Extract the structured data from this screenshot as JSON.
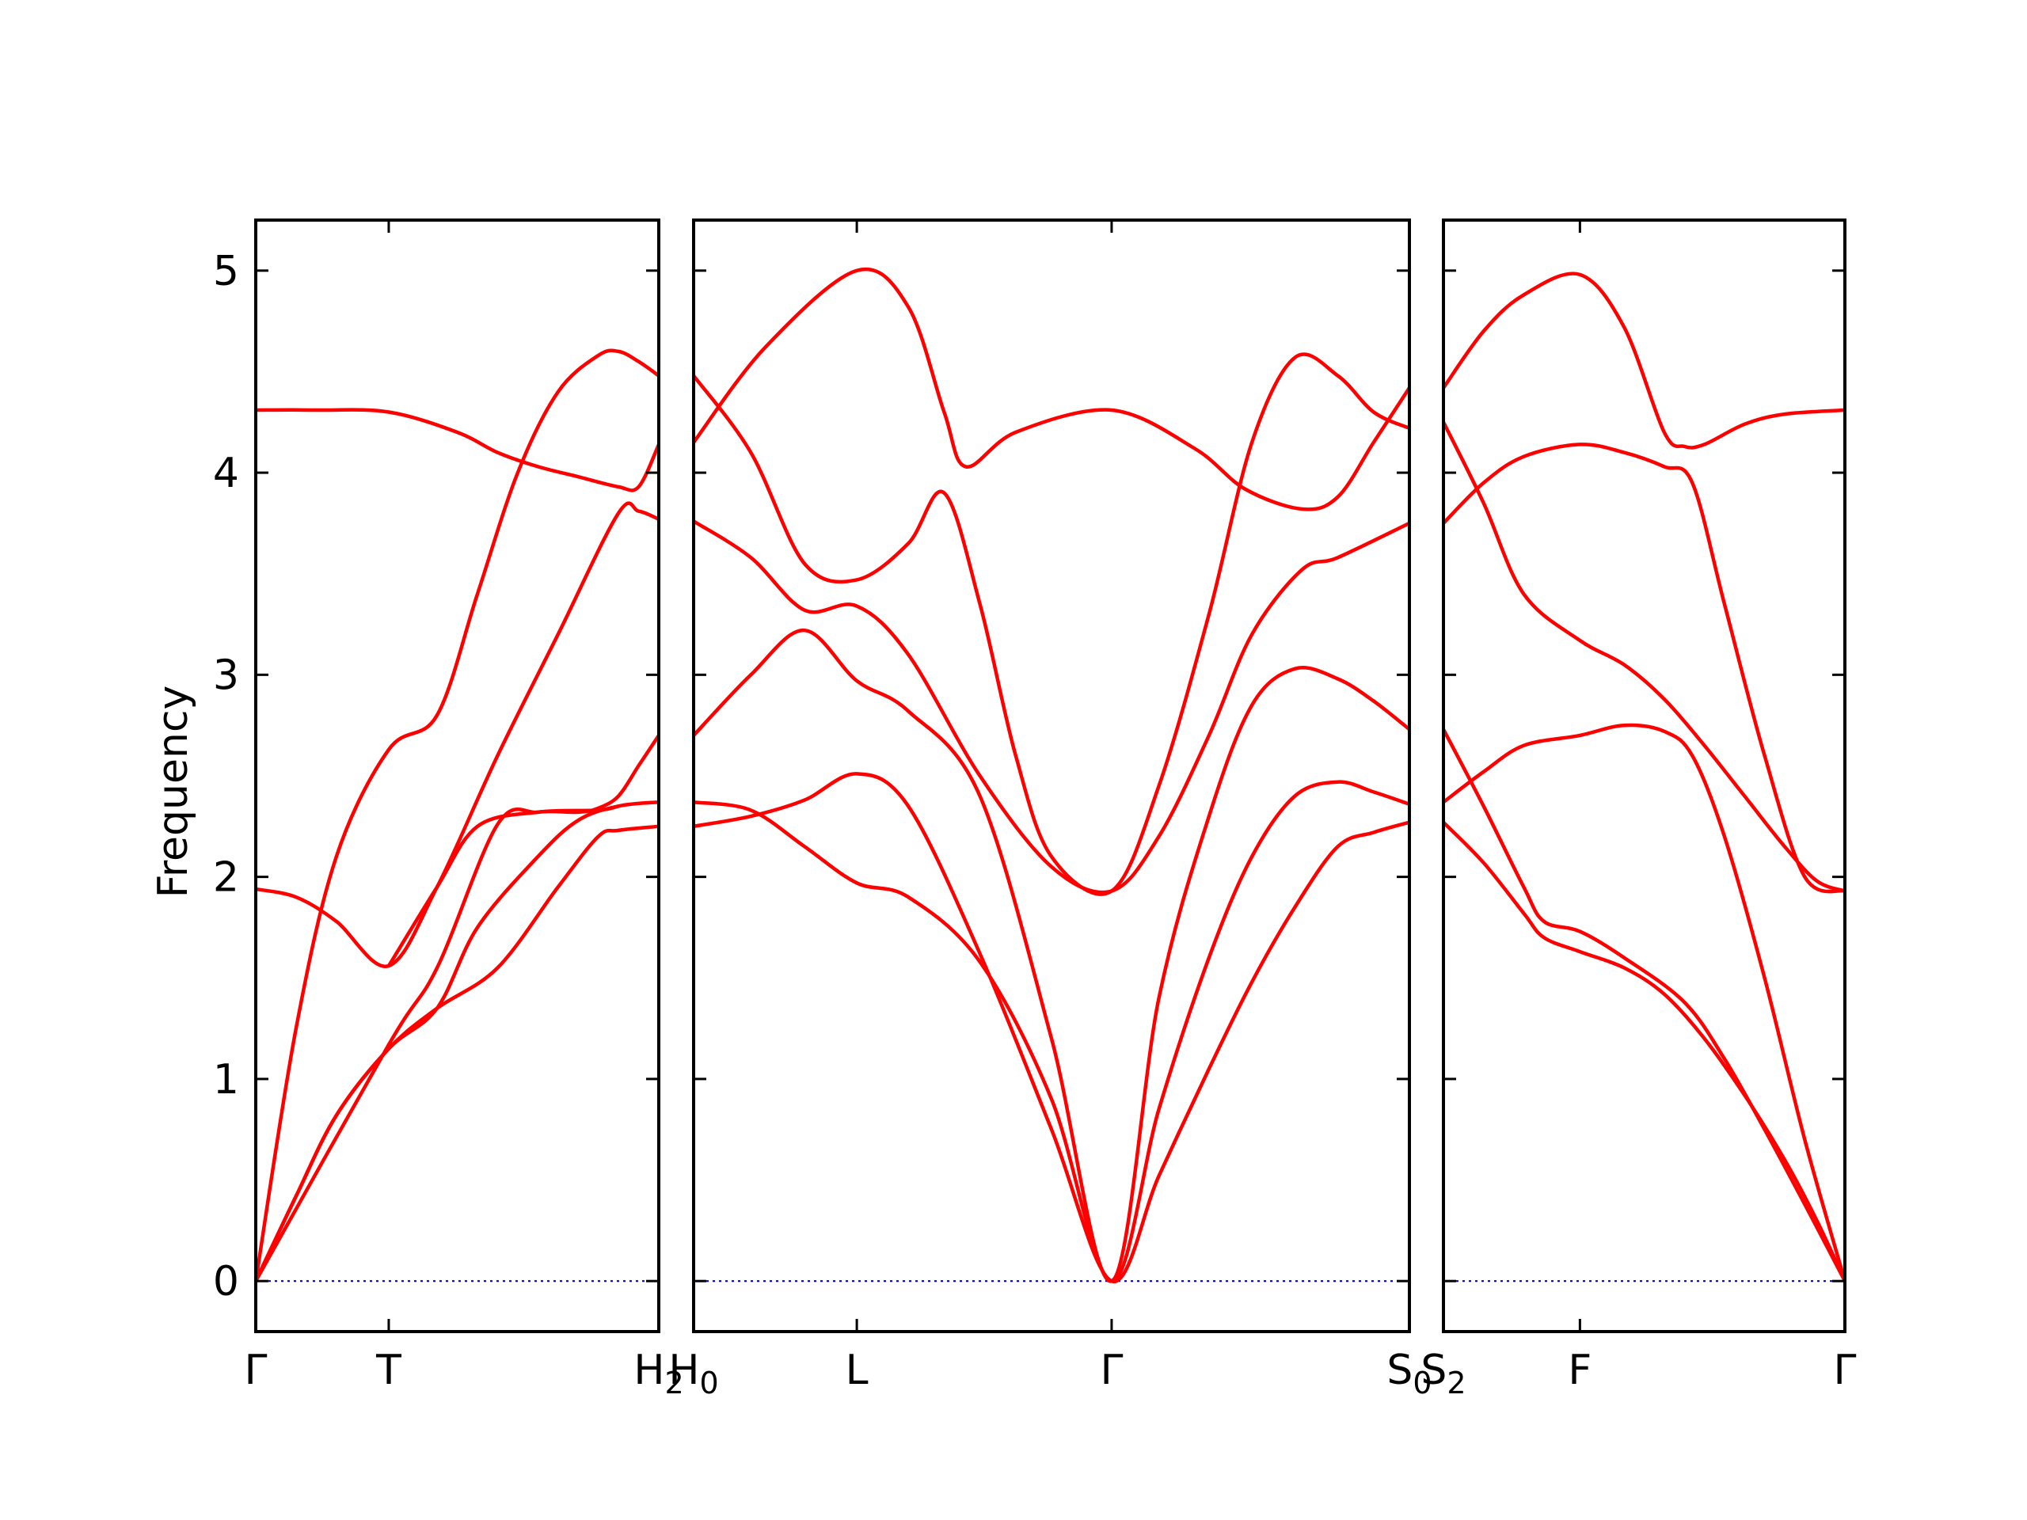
{
  "chart_data": {
    "type": "line",
    "ylabel": "Frequency",
    "ylim": [
      -0.25,
      5.25
    ],
    "yticks": [
      "0",
      "1",
      "2",
      "3",
      "4",
      "5"
    ],
    "grid": false,
    "band_color": "#ff0000",
    "zero_line_color": "#0000cc",
    "panels": [
      {
        "id": "panel-gamma-t-h2",
        "xticks": [
          {
            "label": "Γ",
            "pos": 0
          },
          {
            "label": "T",
            "pos": 0.33
          },
          {
            "label": "H",
            "sub": "2",
            "pos": 1
          }
        ],
        "series": [
          {
            "x": [
              0,
              0.15,
              0.33,
              0.5,
              0.6,
              0.7,
              0.8,
              0.9,
              0.95,
              1
            ],
            "y": [
              4.31,
              4.31,
              4.3,
              4.2,
              4.1,
              4.03,
              3.98,
              3.93,
              3.93,
              4.14
            ]
          },
          {
            "x": [
              0,
              0.1,
              0.2,
              0.33,
              0.45,
              0.55,
              0.65,
              0.75,
              0.85,
              0.9,
              0.95,
              1
            ],
            "y": [
              0,
              1.25,
              2.1,
              2.63,
              2.8,
              3.4,
              4.0,
              4.4,
              4.58,
              4.6,
              4.55,
              4.48
            ]
          },
          {
            "x": [
              0,
              0.1,
              0.2,
              0.33,
              0.45,
              0.6,
              0.75,
              0.9,
              0.95,
              1
            ],
            "y": [
              1.94,
              1.9,
              1.78,
              1.56,
              1.95,
              2.6,
              3.2,
              3.8,
              3.81,
              3.77
            ]
          },
          {
            "x": [
              0,
              0.1,
              0.2,
              0.33,
              0.45,
              0.55,
              0.7,
              0.8,
              0.9,
              1
            ],
            "y": [
              0,
              0.42,
              0.82,
              1.15,
              1.35,
              1.75,
              2.1,
              2.28,
              2.35,
              2.37
            ]
          },
          {
            "x": [
              0,
              0.33,
              0.45,
              0.6,
              0.7,
              0.8,
              0.85,
              0.9,
              0.95,
              1
            ],
            "y": [
              0,
              1.17,
              1.55,
              2.26,
              2.32,
              2.32,
              2.34,
              2.4,
              2.55,
              2.7
            ]
          },
          {
            "x": [
              0,
              0.1,
              0.2,
              0.33,
              0.45,
              0.6,
              0.75,
              0.85,
              0.9,
              1
            ],
            "y": [
              0,
              0.42,
              0.82,
              1.15,
              1.35,
              1.55,
              1.95,
              2.2,
              2.23,
              2.25
            ]
          },
          {
            "x": [
              0.33,
              0.45,
              0.55,
              0.7,
              0.85,
              0.9
            ],
            "y": [
              1.56,
              1.95,
              2.25,
              2.32,
              2.33,
              2.35
            ]
          }
        ]
      },
      {
        "id": "panel-h0-l-gamma-s0",
        "xticks": [
          {
            "label": "H",
            "sub": "0",
            "pos": 0
          },
          {
            "label": "L",
            "pos": 0.228
          },
          {
            "label": "Γ",
            "pos": 0.584
          },
          {
            "label": "S",
            "sub": "0",
            "pos": 1
          }
        ],
        "series": [
          {
            "x": [
              0,
              0.1,
              0.228,
              0.3,
              0.35,
              0.38,
              0.45,
              0.584,
              0.7,
              0.77,
              0.85,
              0.9,
              0.95,
              1
            ],
            "y": [
              4.15,
              4.62,
              5.0,
              4.82,
              4.3,
              4.03,
              4.2,
              4.31,
              4.12,
              3.92,
              3.82,
              3.88,
              4.15,
              4.42
            ]
          },
          {
            "x": [
              0,
              0.08,
              0.155,
              0.228,
              0.3,
              0.35,
              0.4,
              0.45,
              0.5,
              0.584,
              0.65,
              0.72,
              0.78,
              0.84,
              0.9,
              0.95,
              1
            ],
            "y": [
              4.48,
              4.1,
              3.55,
              3.47,
              3.65,
              3.9,
              3.35,
              2.6,
              2.1,
              1.93,
              2.45,
              3.3,
              4.15,
              4.57,
              4.48,
              4.3,
              4.22
            ]
          },
          {
            "x": [
              0,
              0.08,
              0.155,
              0.228,
              0.3,
              0.4,
              0.5,
              0.584,
              0.65,
              0.72,
              0.78,
              0.85,
              0.9,
              1
            ],
            "y": [
              3.76,
              3.58,
              3.32,
              3.34,
              3.1,
              2.5,
              2.05,
              1.93,
              2.2,
              2.7,
              3.2,
              3.52,
              3.58,
              3.75
            ]
          },
          {
            "x": [
              0,
              0.08,
              0.155,
              0.228,
              0.3,
              0.4,
              0.5,
              0.584,
              0.65,
              0.72,
              0.78,
              0.84,
              0.9,
              0.95,
              1
            ],
            "y": [
              2.7,
              3.0,
              3.22,
              2.97,
              2.82,
              2.4,
              1.2,
              0,
              1.4,
              2.3,
              2.85,
              3.03,
              2.98,
              2.87,
              2.73
            ]
          },
          {
            "x": [
              0,
              0.08,
              0.155,
              0.228,
              0.3,
              0.4,
              0.5,
              0.584,
              0.65,
              0.72,
              0.78,
              0.84,
              0.9,
              0.95,
              1
            ],
            "y": [
              2.37,
              2.33,
              2.15,
              1.97,
              1.9,
              1.58,
              0.9,
              0,
              0.85,
              1.6,
              2.1,
              2.4,
              2.47,
              2.42,
              2.36
            ]
          },
          {
            "x": [
              0,
              0.08,
              0.155,
              0.228,
              0.3,
              0.4,
              0.5,
              0.584,
              0.65,
              0.72,
              0.78,
              0.84,
              0.9,
              0.95,
              1
            ],
            "y": [
              2.25,
              2.3,
              2.38,
              2.51,
              2.35,
              1.62,
              0.75,
              0,
              0.52,
              1.05,
              1.48,
              1.85,
              2.15,
              2.22,
              2.27
            ]
          }
        ]
      },
      {
        "id": "panel-s2-f-gamma",
        "xticks": [
          {
            "label": "S",
            "sub": "2",
            "pos": 0
          },
          {
            "label": "F",
            "pos": 0.34
          },
          {
            "label": "Γ",
            "pos": 1
          }
        ],
        "series": [
          {
            "x": [
              0,
              0.1,
              0.2,
              0.34,
              0.45,
              0.55,
              0.6,
              0.65,
              0.75,
              0.85,
              1
            ],
            "y": [
              4.42,
              4.7,
              4.88,
              4.98,
              4.72,
              4.2,
              4.13,
              4.14,
              4.24,
              4.29,
              4.31
            ]
          },
          {
            "x": [
              0,
              0.1,
              0.2,
              0.34,
              0.45,
              0.55,
              0.62,
              0.7,
              0.8,
              0.9,
              1
            ],
            "y": [
              3.75,
              3.95,
              4.08,
              4.14,
              4.1,
              4.03,
              3.95,
              3.35,
              2.6,
              2.0,
              1.93
            ]
          },
          {
            "x": [
              0,
              0.1,
              0.2,
              0.34,
              0.45,
              0.55,
              0.65,
              0.75,
              0.85,
              0.93,
              1
            ],
            "y": [
              4.25,
              3.85,
              3.4,
              3.17,
              3.05,
              2.88,
              2.65,
              2.4,
              2.15,
              1.98,
              1.93
            ]
          },
          {
            "x": [
              0,
              0.1,
              0.2,
              0.34,
              0.45,
              0.55,
              0.62,
              0.7,
              0.8,
              0.9,
              1
            ],
            "y": [
              2.37,
              2.52,
              2.65,
              2.7,
              2.75,
              2.72,
              2.6,
              2.2,
              1.5,
              0.7,
              0
            ]
          },
          {
            "x": [
              0,
              0.1,
              0.2,
              0.25,
              0.34,
              0.45,
              0.6,
              0.7,
              0.8,
              0.9,
              1
            ],
            "y": [
              2.73,
              2.35,
              1.95,
              1.78,
              1.73,
              1.6,
              1.38,
              1.1,
              0.75,
              0.38,
              0
            ]
          },
          {
            "x": [
              0,
              0.1,
              0.2,
              0.25,
              0.34,
              0.45,
              0.55,
              0.65,
              0.75,
              0.85,
              0.93,
              1
            ],
            "y": [
              2.27,
              2.07,
              1.82,
              1.7,
              1.63,
              1.55,
              1.42,
              1.2,
              0.92,
              0.6,
              0.3,
              0
            ]
          }
        ]
      }
    ]
  }
}
